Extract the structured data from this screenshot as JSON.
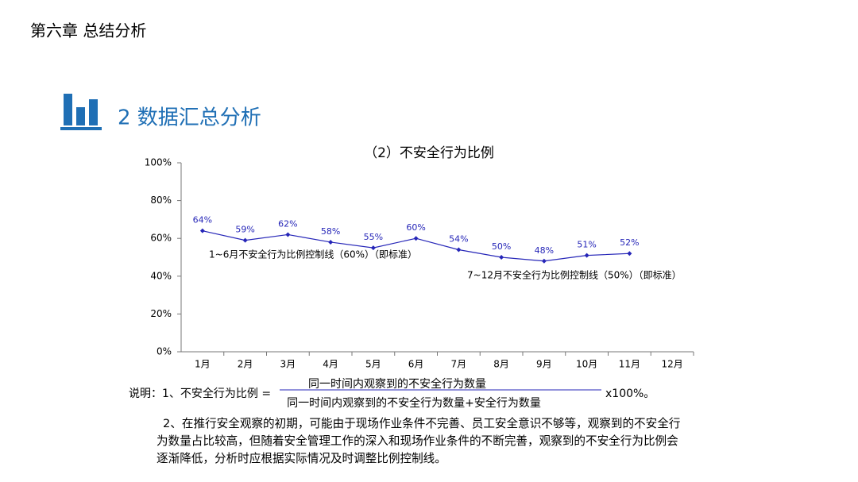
{
  "header": {
    "title": "第六章 总结分析"
  },
  "section": {
    "title": "2 数据汇总分析"
  },
  "chart_data": {
    "type": "line",
    "title": "（2）不安全行为比例",
    "categories": [
      "1月",
      "2月",
      "3月",
      "4月",
      "5月",
      "6月",
      "7月",
      "8月",
      "9月",
      "10月",
      "11月",
      "12月"
    ],
    "series": [
      {
        "name": "不安全行为比例",
        "color": "#2626b8",
        "values": [
          64,
          59,
          62,
          58,
          55,
          60,
          54,
          50,
          48,
          51,
          52,
          null
        ],
        "value_labels": [
          "64%",
          "59%",
          "62%",
          "58%",
          "55%",
          "60%",
          "54%",
          "50%",
          "48%",
          "51%",
          "52%",
          null
        ]
      }
    ],
    "ylim": [
      0,
      100
    ],
    "yticks": [
      {
        "value": 0,
        "label": "0%"
      },
      {
        "value": 20,
        "label": "20%"
      },
      {
        "value": 40,
        "label": "40%"
      },
      {
        "value": 60,
        "label": "60%"
      },
      {
        "value": 80,
        "label": "80%"
      },
      {
        "value": 100,
        "label": "100%"
      }
    ],
    "annotations": [
      "1~6月不安全行为比例控制线（60%）（即标准）",
      "7~12月不安全行为比例控制线（50%）（即标准）"
    ],
    "grid": false
  },
  "notes": {
    "intro": "说明：1、不安全行为比例 =",
    "numerator": "同一时间内观察到的不安全行为数量",
    "denominator": "同一时间内观察到的不安全行为数量+安全行为数量",
    "suffix": "x100%。",
    "paragraph": [
      "2、在推行安全观察的初期，可能由于现场作业条件不完善、员工安全意识不够等，观察到的不安全行",
      "为数量占比较高，但随着安全管理工作的深入和现场作业条件的不断完善，观察到的不安全行为比例会",
      "逐渐降低，分析时应根据实际情况及时调整比例控制线。"
    ]
  }
}
